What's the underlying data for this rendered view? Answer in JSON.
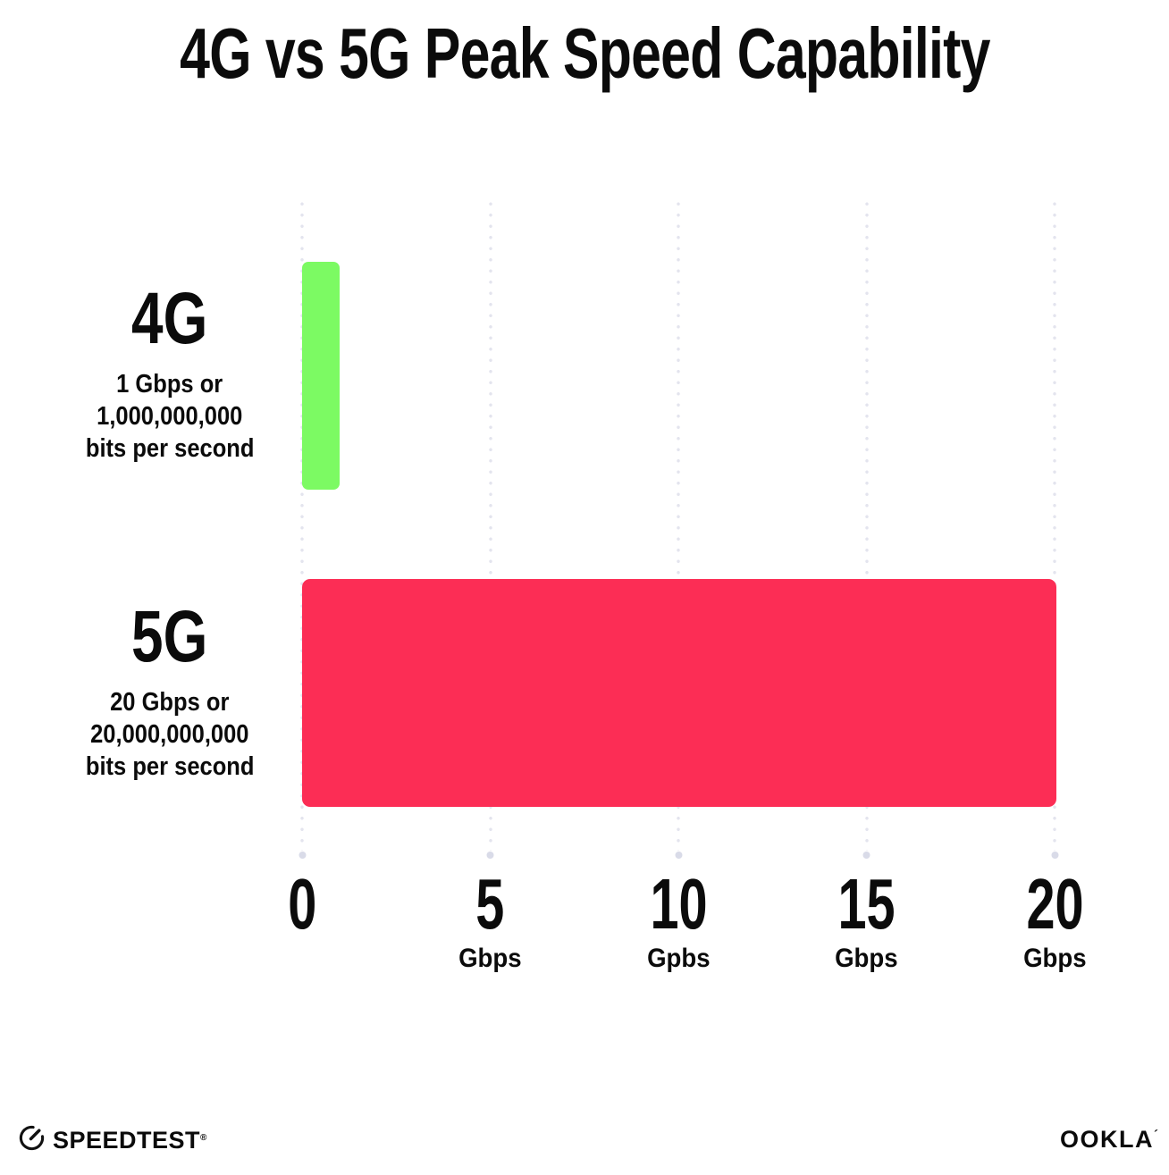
{
  "title": "4G vs 5G Peak Speed Capability",
  "chart_data": {
    "type": "bar",
    "orientation": "horizontal",
    "title": "4G vs 5G Peak Speed Capability",
    "unit": "Gbps",
    "xlim": [
      0,
      20
    ],
    "grid": "dotted vertical gridlines at 0, 5, 10, 15, 20",
    "categories": [
      "4G",
      "5G"
    ],
    "values": [
      1,
      20
    ],
    "rows": [
      {
        "label": "4G",
        "value": 1,
        "color": "#7CFA63",
        "sub_lines": [
          "1 Gbps or",
          "1,000,000,000",
          "bits per second"
        ]
      },
      {
        "label": "5G",
        "value": 20,
        "color": "#FC2D55",
        "sub_lines": [
          "20 Gbps or",
          "20,000,000,000",
          "bits per second"
        ]
      }
    ],
    "x_ticks": [
      {
        "number": "0",
        "unit": ""
      },
      {
        "number": "5",
        "unit": "Gbps"
      },
      {
        "number": "10",
        "unit": "Gpbs"
      },
      {
        "number": "15",
        "unit": "Gbps"
      },
      {
        "number": "20",
        "unit": "Gbps"
      }
    ]
  },
  "footer": {
    "speedtest_label": "SPEEDTEST",
    "speedtest_mark": "®",
    "ookla_label": "OOKLA",
    "ookla_mark": "´"
  },
  "colors": {
    "bar_4g": "#7CFA63",
    "bar_5g": "#FC2D55",
    "grid_dot": "#E3E4EE",
    "grid_end_dot": "#D9DBE8",
    "text": "#0B0B0B"
  }
}
